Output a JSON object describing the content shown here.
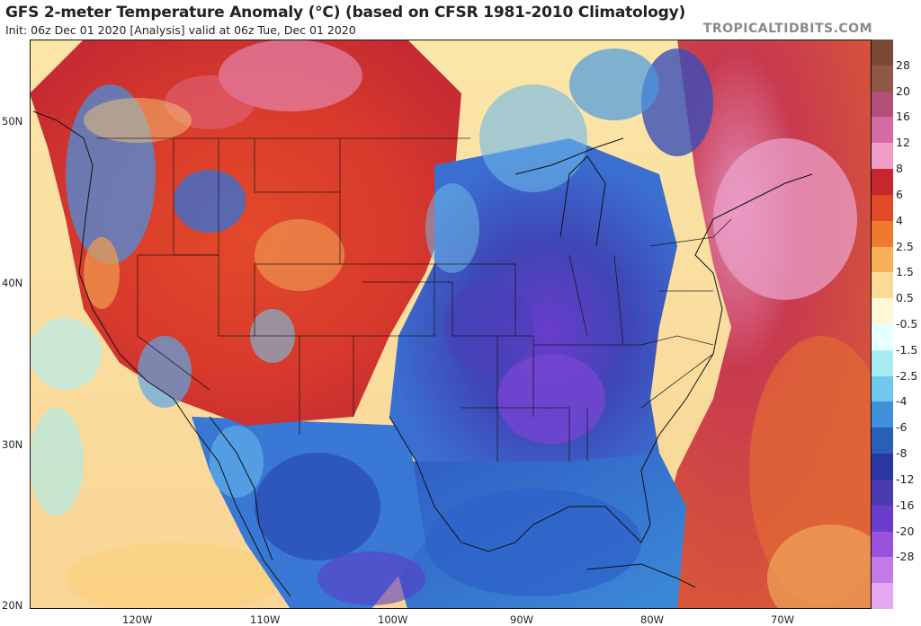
{
  "header": {
    "title": "GFS 2-meter Temperature Anomaly (°C) (based on CFSR 1981-2010 Climatology)",
    "subtitle": "Init: 06z Dec 01 2020   [Analysis]   valid at 06z Tue, Dec 01 2020",
    "brand": "TROPICALTIDBITS.COM"
  },
  "axes": {
    "lat_labels": [
      "50N",
      "40N",
      "30N",
      "20N"
    ],
    "lon_labels": [
      "120W",
      "110W",
      "100W",
      "90W",
      "80W",
      "70W"
    ]
  },
  "colorbar": {
    "labels": [
      "28",
      "20",
      "16",
      "12",
      "8",
      "6",
      "4",
      "2.5",
      "1.5",
      "0.5",
      "-0.5",
      "-1.5",
      "-2.5",
      "-4",
      "-6",
      "-8",
      "-12",
      "-16",
      "-20",
      "-28"
    ],
    "colors": [
      "#7a4a35",
      "#8e5a45",
      "#b24f79",
      "#d66aa3",
      "#f09dc7",
      "#c8262f",
      "#e04a28",
      "#ef7a2e",
      "#f6b15a",
      "#fbdc96",
      "#fff8d8",
      "#e6ffff",
      "#a6ecf2",
      "#72c7ec",
      "#3f8fd9",
      "#2a5fb8",
      "#2838a0",
      "#4a3aaf",
      "#6a3ccc",
      "#9a52dc",
      "#c47ae8",
      "#e6a8f0"
    ]
  },
  "map": {
    "region": "North America - CONUS",
    "colors": {
      "warm": "#d2333a",
      "hot": "#b8242e",
      "pink": "#e583b6",
      "cool": "#3f78d6",
      "cold": "#2f44b0",
      "very_cold": "#6a3ccc"
    }
  }
}
